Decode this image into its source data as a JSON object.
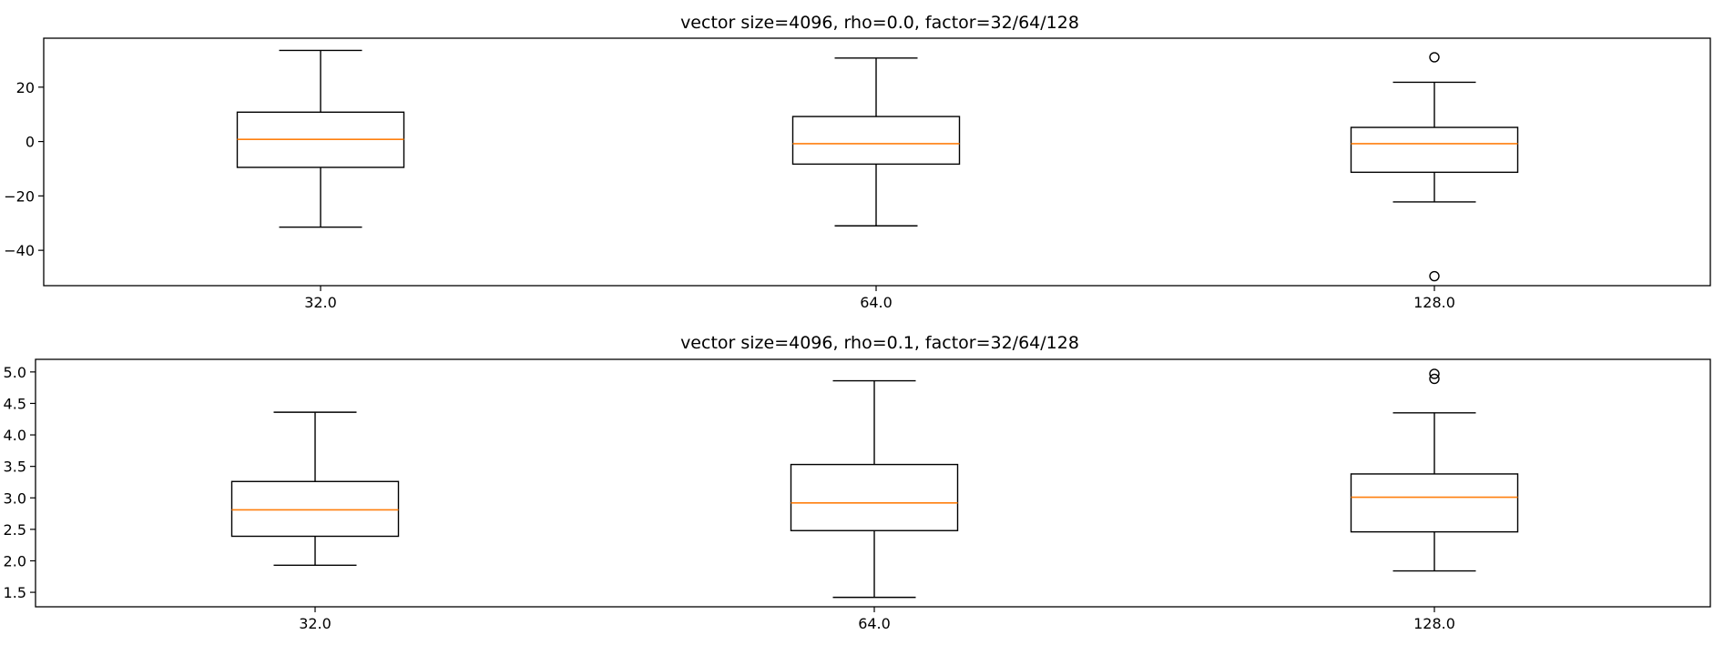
{
  "chart_data": [
    {
      "type": "box",
      "title": "vector size=4096, rho=0.0, factor=32/64/128",
      "categories": [
        "32.0",
        "64.0",
        "128.0"
      ],
      "ylim": [
        -53,
        38
      ],
      "yticks": [
        20,
        0,
        -20,
        -40
      ],
      "ytick_labels": [
        "20",
        "0",
        "−20",
        "−40"
      ],
      "boxes": [
        {
          "whisker_low": -31.5,
          "q1": -9.5,
          "median": 0.8,
          "q3": 10.8,
          "whisker_high": 33.5,
          "fliers": []
        },
        {
          "whisker_low": -31.0,
          "q1": -8.3,
          "median": -0.8,
          "q3": 9.2,
          "whisker_high": 30.7,
          "fliers": []
        },
        {
          "whisker_low": -22.2,
          "q1": -11.3,
          "median": -0.8,
          "q3": 5.2,
          "whisker_high": 21.8,
          "fliers": [
            31.0,
            -49.5
          ]
        }
      ]
    },
    {
      "type": "box",
      "title": "vector size=4096, rho=0.1, factor=32/64/128",
      "categories": [
        "32.0",
        "64.0",
        "128.0"
      ],
      "ylim": [
        1.27,
        5.2
      ],
      "yticks": [
        5.0,
        4.5,
        4.0,
        3.5,
        3.0,
        2.5,
        2.0,
        1.5
      ],
      "ytick_labels": [
        "5.0",
        "4.5",
        "4.0",
        "3.5",
        "3.0",
        "2.5",
        "2.0",
        "1.5"
      ],
      "boxes": [
        {
          "whisker_low": 1.93,
          "q1": 2.39,
          "median": 2.81,
          "q3": 3.26,
          "whisker_high": 4.36,
          "fliers": []
        },
        {
          "whisker_low": 1.42,
          "q1": 2.48,
          "median": 2.92,
          "q3": 3.53,
          "whisker_high": 4.86,
          "fliers": []
        },
        {
          "whisker_low": 1.84,
          "q1": 2.46,
          "median": 3.01,
          "q3": 3.38,
          "whisker_high": 4.35,
          "fliers": [
            4.97,
            4.89
          ]
        }
      ]
    }
  ],
  "colors": {
    "box": "#000000",
    "median": "#ff7f0e",
    "flier": "#000000"
  }
}
